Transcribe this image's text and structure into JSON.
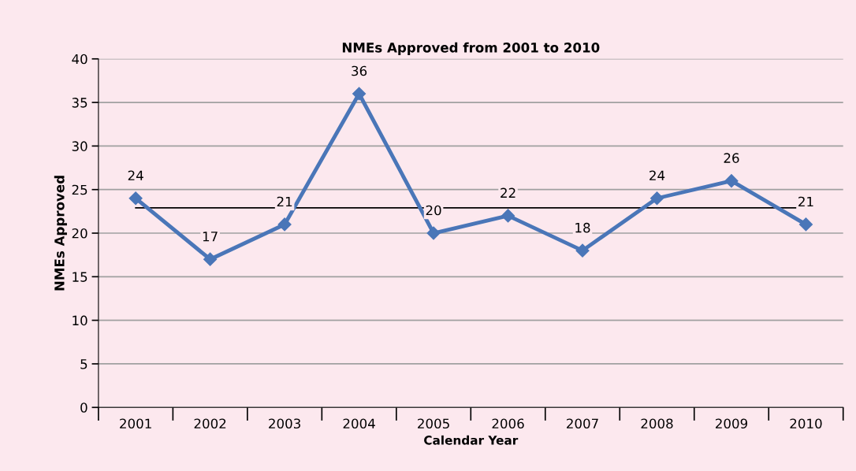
{
  "chart_data": {
    "type": "line",
    "title": "NMEs Approved from 2001 to 2010",
    "xlabel": "Calendar Year",
    "ylabel": "NMEs Approved",
    "categories": [
      "2001",
      "2002",
      "2003",
      "2004",
      "2005",
      "2006",
      "2007",
      "2008",
      "2009",
      "2010"
    ],
    "series": [
      {
        "color": "#4a76b8",
        "values": [
          24,
          17,
          21,
          36,
          20,
          22,
          18,
          24,
          26,
          21
        ]
      }
    ],
    "ylim": [
      0,
      40
    ],
    "yticks": [
      0,
      5,
      10,
      15,
      20,
      25,
      30,
      35,
      40
    ],
    "grid": "y",
    "marker": "diamond",
    "line_style": "solid",
    "data_labels": true,
    "legend": false,
    "ref_lines": [
      {
        "axis": "y",
        "value": 22.9,
        "color": "#000000",
        "line_style": "solid"
      }
    ]
  }
}
